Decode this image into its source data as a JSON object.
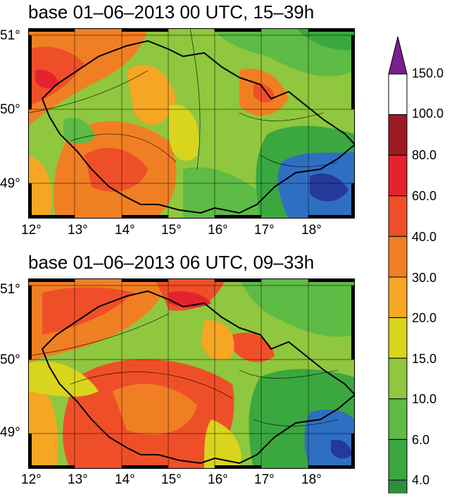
{
  "panels": [
    {
      "title": "base 01–06–2013 00 UTC, 15–39h",
      "lon_ticks": [
        "12°",
        "13°",
        "14°",
        "15°",
        "16°",
        "17°",
        "18°"
      ],
      "lat_ticks": [
        "51°",
        "50°",
        "49°"
      ]
    },
    {
      "title": "base 01–06–2013 06 UTC, 09–33h",
      "lon_ticks": [
        "12°",
        "13°",
        "14°",
        "15°",
        "16°",
        "17°",
        "18°"
      ],
      "lat_ticks": [
        "51°",
        "50°",
        "49°"
      ]
    }
  ],
  "colorbar": {
    "labels": [
      "150.0",
      "100.0",
      "80.0",
      "60.0",
      "40.0",
      "30.0",
      "20.0",
      "15.0",
      "10.0",
      "6.0",
      "4.0"
    ],
    "colors": [
      "#7a1f8e",
      "#ffffff",
      "#9c1a22",
      "#e5232e",
      "#ef4f28",
      "#f07f24",
      "#f5a623",
      "#d9d51c",
      "#8fc73e",
      "#5dbb46",
      "#3aa83f",
      "#2e8e3c"
    ]
  }
}
